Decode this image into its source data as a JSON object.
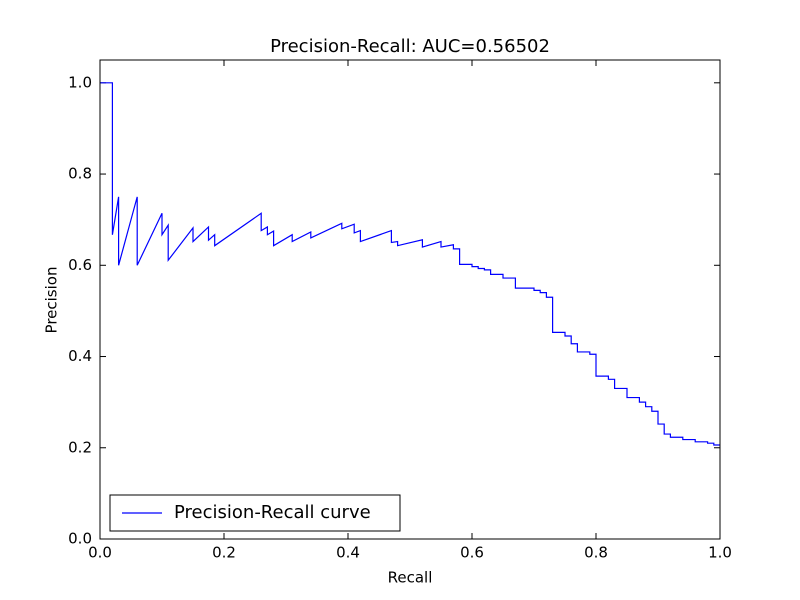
{
  "chart_data": {
    "type": "line",
    "title": "Precision-Recall: AUC=0.56502",
    "x_label": "Recall",
    "y_label": "Precision",
    "x": [
      0,
      0.02,
      0.02,
      0.03,
      0.03,
      0.06,
      0.06,
      0.1,
      0.1,
      0.11,
      0.11,
      0.15,
      0.15,
      0.175,
      0.175,
      0.185,
      0.185,
      0.26,
      0.26,
      0.27,
      0.27,
      0.28,
      0.28,
      0.31,
      0.31,
      0.34,
      0.34,
      0.39,
      0.39,
      0.41,
      0.41,
      0.42,
      0.42,
      0.47,
      0.47,
      0.48,
      0.48,
      0.52,
      0.52,
      0.55,
      0.55,
      0.57,
      0.57,
      0.58,
      0.58,
      0.6,
      0.6,
      0.61,
      0.61,
      0.62,
      0.62,
      0.63,
      0.63,
      0.65,
      0.65,
      0.67,
      0.67,
      0.7,
      0.7,
      0.71,
      0.71,
      0.72,
      0.72,
      0.73,
      0.73,
      0.75,
      0.75,
      0.76,
      0.76,
      0.77,
      0.77,
      0.79,
      0.79,
      0.8,
      0.8,
      0.82,
      0.82,
      0.83,
      0.83,
      0.85,
      0.85,
      0.87,
      0.87,
      0.88,
      0.88,
      0.89,
      0.89,
      0.9,
      0.9,
      0.91,
      0.91,
      0.92,
      0.92,
      0.94,
      0.94,
      0.96,
      0.96,
      0.98,
      0.98,
      0.99,
      0.99,
      1.0
    ],
    "series": [
      {
        "name": "Precision-Recall curve",
        "color": "#0000ff",
        "values": [
          1.0,
          1.0,
          0.667,
          0.75,
          0.6,
          0.75,
          0.6,
          0.714,
          0.667,
          0.688,
          0.611,
          0.682,
          0.652,
          0.684,
          0.655,
          0.667,
          0.643,
          0.714,
          0.676,
          0.684,
          0.667,
          0.675,
          0.643,
          0.667,
          0.652,
          0.673,
          0.66,
          0.692,
          0.68,
          0.69,
          0.671,
          0.676,
          0.652,
          0.676,
          0.65,
          0.652,
          0.643,
          0.656,
          0.64,
          0.652,
          0.64,
          0.645,
          0.636,
          0.636,
          0.602,
          0.602,
          0.597,
          0.597,
          0.593,
          0.593,
          0.59,
          0.59,
          0.58,
          0.58,
          0.572,
          0.572,
          0.55,
          0.55,
          0.545,
          0.545,
          0.54,
          0.54,
          0.53,
          0.53,
          0.453,
          0.453,
          0.445,
          0.445,
          0.428,
          0.428,
          0.41,
          0.41,
          0.405,
          0.405,
          0.357,
          0.357,
          0.35,
          0.35,
          0.33,
          0.33,
          0.31,
          0.31,
          0.3,
          0.3,
          0.29,
          0.29,
          0.28,
          0.28,
          0.252,
          0.252,
          0.23,
          0.23,
          0.223,
          0.223,
          0.218,
          0.218,
          0.213,
          0.213,
          0.21,
          0.21,
          0.206,
          0.206
        ]
      }
    ],
    "xlim": [
      0,
      1
    ],
    "ylim": [
      0,
      1.05
    ],
    "xticks": [
      {
        "value": 0,
        "label": "0.0"
      },
      {
        "value": 0.2,
        "label": "0.2"
      },
      {
        "value": 0.4,
        "label": "0.4"
      },
      {
        "value": 0.6,
        "label": "0.6"
      },
      {
        "value": 0.8,
        "label": "0.8"
      },
      {
        "value": 1,
        "label": "1.0"
      }
    ],
    "yticks": [
      {
        "value": 0,
        "label": "0.0"
      },
      {
        "value": 0.2,
        "label": "0.2"
      },
      {
        "value": 0.4,
        "label": "0.4"
      },
      {
        "value": 0.6,
        "label": "0.6"
      },
      {
        "value": 0.8,
        "label": "0.8"
      },
      {
        "value": 1,
        "label": "1.0"
      }
    ],
    "legend": "lower left"
  }
}
